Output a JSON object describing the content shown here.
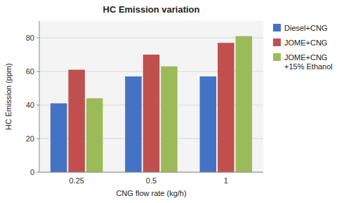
{
  "chart_data": {
    "type": "bar",
    "title": "HC Emission variation",
    "xlabel": "CNG flow rate (kg/h)",
    "ylabel": "HC Emission (ppm)",
    "categories": [
      "0.25",
      "0.5",
      "1"
    ],
    "series": [
      {
        "name": "Diesel+CNG",
        "color": "#4472C4",
        "values": [
          41,
          57,
          57
        ]
      },
      {
        "name": "JOME+CNG",
        "color": "#C0504D",
        "values": [
          61,
          70,
          77
        ]
      },
      {
        "name": "JOME+CNG\n+15% Ethanol",
        "color": "#9BBB59",
        "values": [
          44,
          63,
          81
        ]
      }
    ],
    "ylim": [
      0,
      90
    ],
    "yticks": [
      0,
      20,
      40,
      60,
      80
    ],
    "grid": true,
    "legend": "upper right"
  }
}
